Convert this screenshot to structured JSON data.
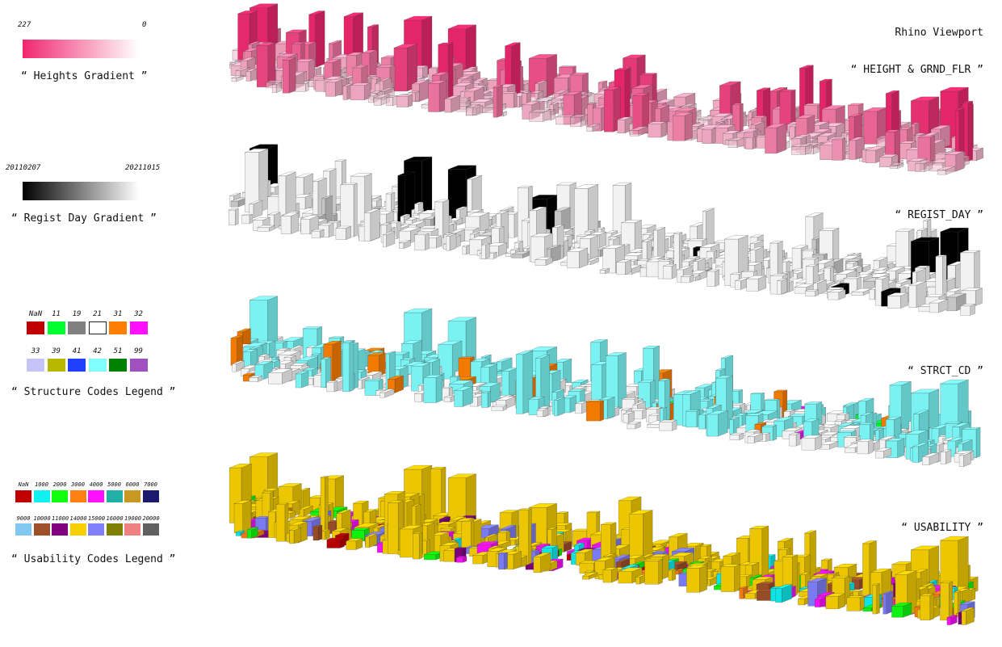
{
  "viewport": {
    "title": "Rhino Viewport",
    "views": [
      {
        "label": "“ HEIGHT & GRND_FLR ”"
      },
      {
        "label": "“ REGIST_DAY ”"
      },
      {
        "label": "“ STRCT_CD ”"
      },
      {
        "label": "“ USABILITY ”"
      }
    ]
  },
  "heights_legend": {
    "max_label": "227",
    "min_label": "0",
    "caption": "“ Heights Gradient ”",
    "color_high": "#f0286e",
    "color_low": "#ffffff"
  },
  "regist_legend": {
    "start_label": "20110207",
    "end_label": "20211015",
    "caption": "“ Regist Day Gradient ”",
    "color_start": "#000000",
    "color_end": "#ffffff"
  },
  "structure_legend": {
    "caption": "“ Structure Codes Legend ”",
    "row1": [
      {
        "code": "NaN",
        "color": "#c00000"
      },
      {
        "code": "11",
        "color": "#00ff30"
      },
      {
        "code": "19",
        "color": "#808080"
      },
      {
        "code": "21",
        "color": "#ffffff"
      },
      {
        "code": "31",
        "color": "#ff8000"
      },
      {
        "code": "32",
        "color": "#ff10ff"
      }
    ],
    "row2": [
      {
        "code": "33",
        "color": "#c4c4f8"
      },
      {
        "code": "39",
        "color": "#b8b800"
      },
      {
        "code": "41",
        "color": "#2040ff"
      },
      {
        "code": "42",
        "color": "#80ffff"
      },
      {
        "code": "51",
        "color": "#008000"
      },
      {
        "code": "99",
        "color": "#a050c0"
      }
    ]
  },
  "usability_legend": {
    "caption": "“ Usability Codes Legend ”",
    "row1": [
      {
        "code": "NaN",
        "color": "#c00000"
      },
      {
        "code": "1000",
        "color": "#10f0f0"
      },
      {
        "code": "2000",
        "color": "#10ff10"
      },
      {
        "code": "3000",
        "color": "#ff8010"
      },
      {
        "code": "4000",
        "color": "#ff10ff"
      },
      {
        "code": "5000",
        "color": "#20b0a8"
      },
      {
        "code": "6000",
        "color": "#c89820"
      },
      {
        "code": "7000",
        "color": "#1a1a70"
      }
    ],
    "row2": [
      {
        "code": "9000",
        "color": "#80c8f0"
      },
      {
        "code": "10000",
        "color": "#a05028"
      },
      {
        "code": "11000",
        "color": "#800080"
      },
      {
        "code": "14000",
        "color": "#f8d000"
      },
      {
        "code": "15000",
        "color": "#8080ff"
      },
      {
        "code": "16000",
        "color": "#808000"
      },
      {
        "code": "19000",
        "color": "#f08080"
      },
      {
        "code": "20000",
        "color": "#606060"
      }
    ]
  }
}
